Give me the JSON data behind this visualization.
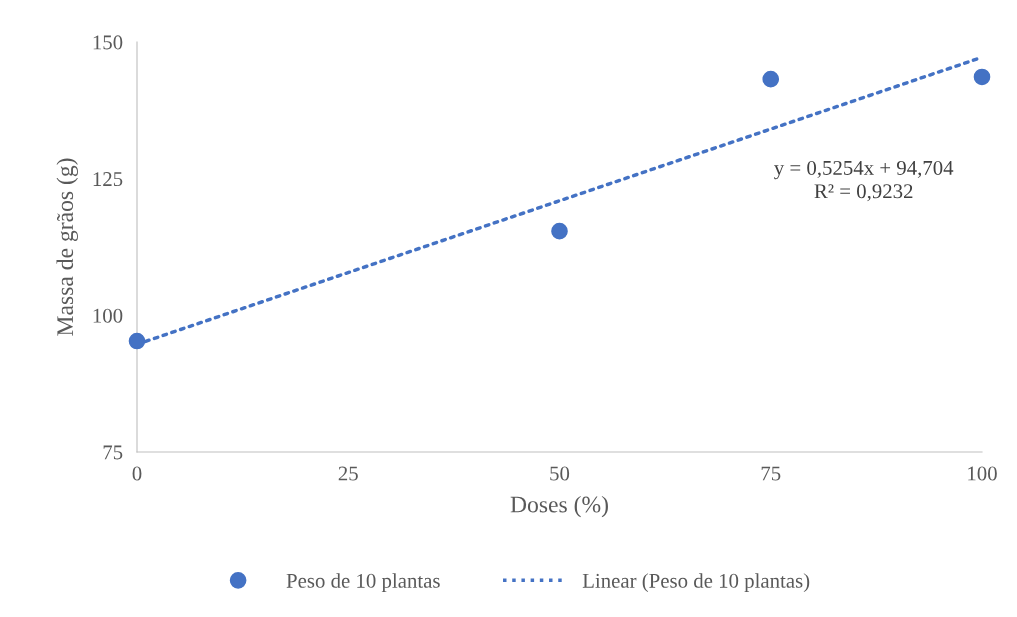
{
  "chart_data": {
    "type": "scatter",
    "xlabel": "Doses (%)",
    "ylabel": "Massa de grãos (g)",
    "x": [
      0,
      50,
      75,
      100
    ],
    "series": [
      {
        "name": "Peso de 10 plantas",
        "color": "#4472c4",
        "marker": "circle",
        "values": [
          95.3,
          115.4,
          143.2,
          143.6
        ]
      },
      {
        "name": "Linear (Peso de 10 plantas)",
        "type": "line",
        "color": "#4472c4",
        "line_style": "dotted",
        "marker": "none",
        "x": [
          0,
          100
        ],
        "values": [
          94.7,
          147.2
        ]
      }
    ],
    "annotations": [
      "y = 0,5254x + 94,704\nR² = 0,9232"
    ],
    "xlim": [
      0,
      100
    ],
    "xticks": [
      0,
      25,
      50,
      75,
      100
    ],
    "ylim": [
      75,
      150
    ],
    "yticks": [
      75,
      100,
      125,
      150
    ],
    "grid": false,
    "legend": "bottom"
  }
}
